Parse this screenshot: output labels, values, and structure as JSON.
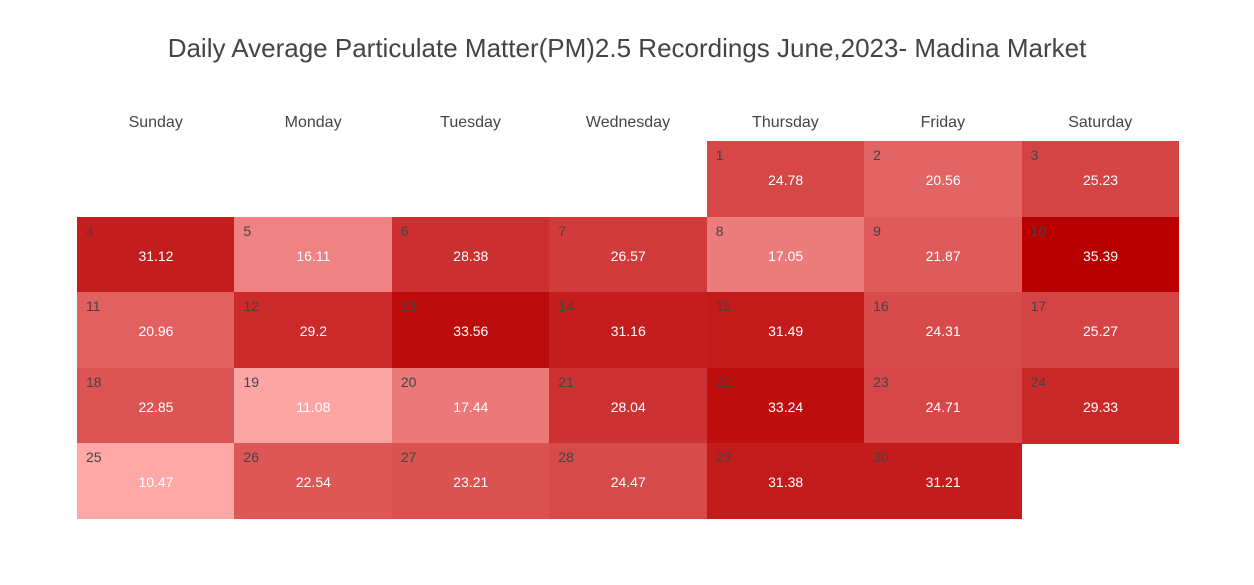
{
  "chart_data": {
    "type": "heatmap",
    "title": "Daily Average Particulate Matter(PM)2.5 Recordings June,2023- Madina Market",
    "weekdays": [
      "Sunday",
      "Monday",
      "Tuesday",
      "Wednesday",
      "Thursday",
      "Friday",
      "Saturday"
    ],
    "month_start_weekday": "Thursday",
    "days": [
      {
        "day": "1",
        "value": 24.78
      },
      {
        "day": "2",
        "value": 20.56
      },
      {
        "day": "3",
        "value": 25.23
      },
      {
        "day": "4",
        "value": 31.12
      },
      {
        "day": "5",
        "value": 16.11
      },
      {
        "day": "6",
        "value": 28.38
      },
      {
        "day": "7",
        "value": 26.57
      },
      {
        "day": "8",
        "value": 17.05
      },
      {
        "day": "9",
        "value": 21.87
      },
      {
        "day": "10",
        "value": 35.39
      },
      {
        "day": "11",
        "value": 20.96
      },
      {
        "day": "12",
        "value": 29.2
      },
      {
        "day": "13",
        "value": 33.56
      },
      {
        "day": "14",
        "value": 31.16
      },
      {
        "day": "15",
        "value": 31.49
      },
      {
        "day": "16",
        "value": 24.31
      },
      {
        "day": "17",
        "value": 25.27
      },
      {
        "day": "18",
        "value": 22.85
      },
      {
        "day": "19",
        "value": 11.08
      },
      {
        "day": "20",
        "value": 17.44
      },
      {
        "day": "21",
        "value": 28.04
      },
      {
        "day": "22",
        "value": 33.24
      },
      {
        "day": "23",
        "value": 24.71
      },
      {
        "day": "24",
        "value": 29.33
      },
      {
        "day": "25",
        "value": 10.47
      },
      {
        "day": "26",
        "value": 22.54
      },
      {
        "day": "27",
        "value": 23.21
      },
      {
        "day": "28",
        "value": 24.47
      },
      {
        "day": "29",
        "value": 31.38
      },
      {
        "day": "30",
        "value": 31.21
      }
    ],
    "color_scale": {
      "low": "#ffa8a8",
      "high": "#b80000"
    }
  }
}
